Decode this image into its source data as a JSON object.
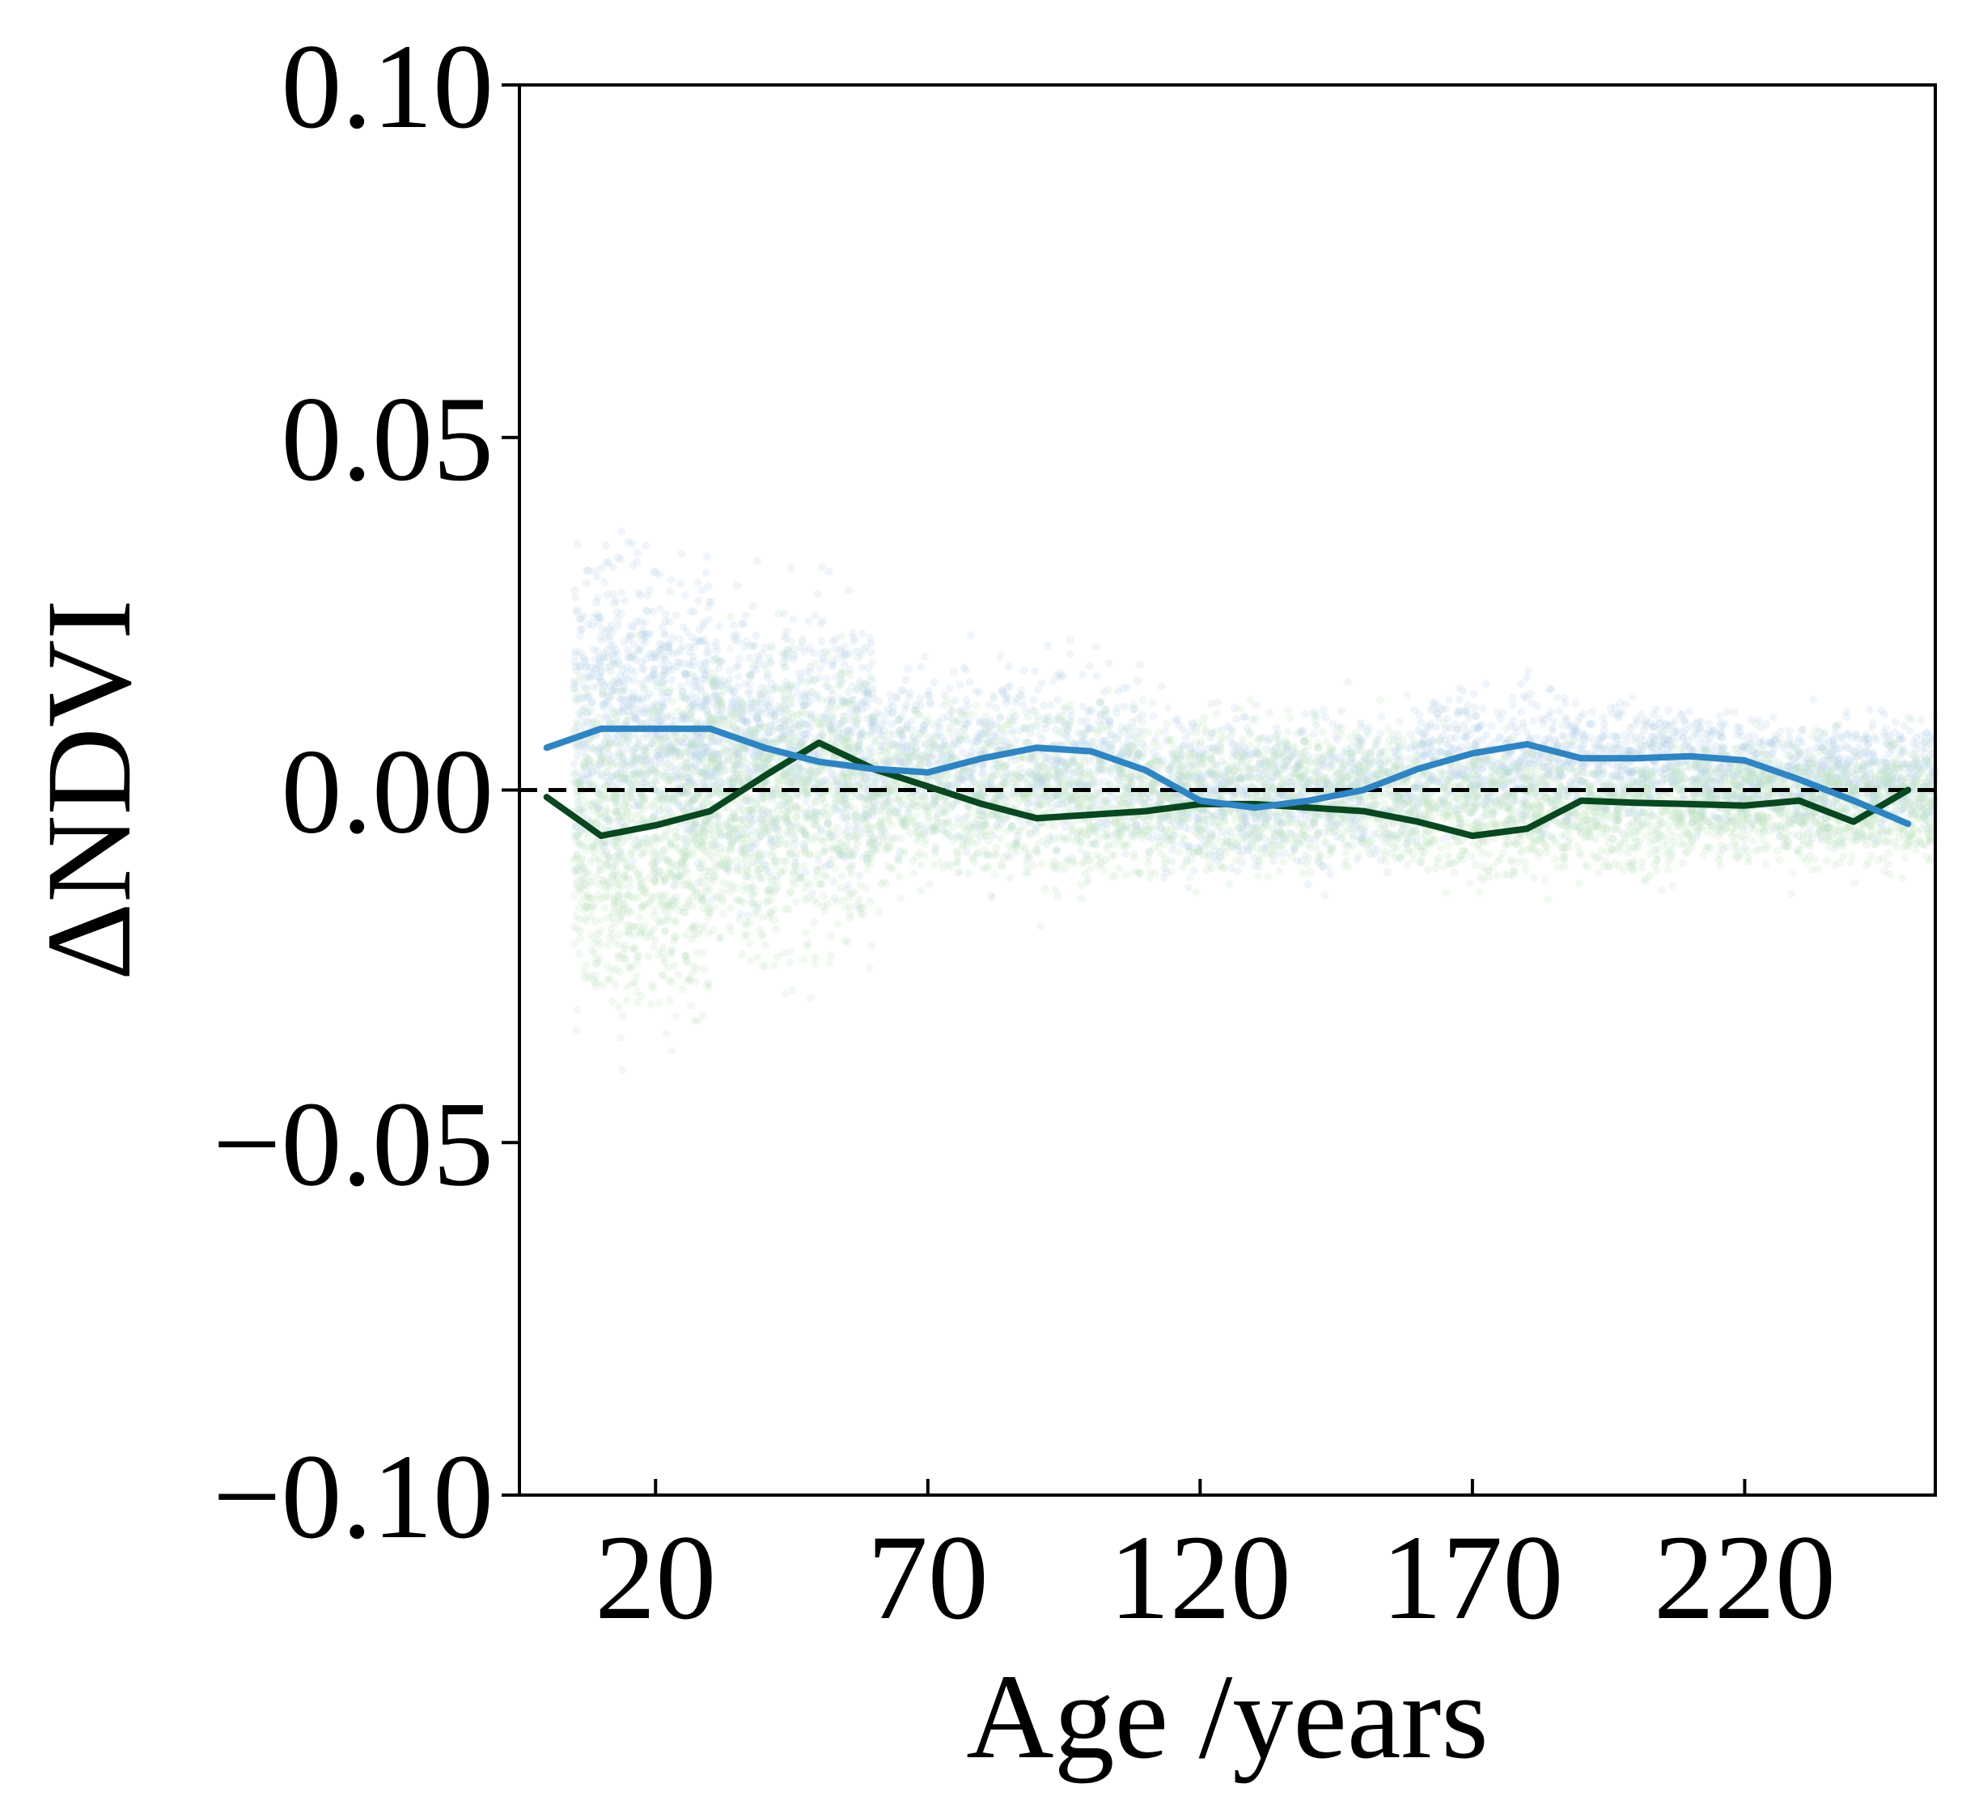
{
  "chart_data": {
    "type": "line",
    "title": "",
    "xlabel": "Age /years",
    "ylabel": "ΔNDVI",
    "xlim": [
      -5,
      255
    ],
    "ylim": [
      -0.1,
      0.1
    ],
    "x_ticks": [
      20,
      70,
      120,
      170,
      220
    ],
    "x_tick_labels": [
      "20",
      "70",
      "120",
      "170",
      "220"
    ],
    "y_ticks": [
      -0.1,
      -0.05,
      0.0,
      0.05,
      0.1
    ],
    "y_tick_labels": [
      "−0.10",
      "−0.05",
      "0.00",
      "0.05",
      "0.10"
    ],
    "reference_line": {
      "y": 0.0,
      "style": "dashed",
      "color": "#000000"
    },
    "grid": false,
    "legend": "none",
    "series": [
      {
        "color": "#08471f",
        "x": [
          0,
          10,
          20,
          30,
          40,
          50,
          60,
          70,
          80,
          90,
          100,
          110,
          120,
          130,
          140,
          150,
          160,
          170,
          180,
          190,
          200,
          210,
          220,
          230,
          240,
          250
        ],
        "y": [
          -0.001,
          -0.0065,
          -0.005,
          -0.003,
          0.002,
          0.0067,
          0.003,
          0.0005,
          -0.002,
          -0.004,
          -0.0035,
          -0.003,
          -0.002,
          -0.002,
          -0.0025,
          -0.003,
          -0.0045,
          -0.0065,
          -0.0055,
          -0.0015,
          -0.0018,
          -0.002,
          -0.0022,
          -0.0015,
          -0.0045,
          0.0
        ]
      },
      {
        "color": "#2f84c2",
        "x": [
          0,
          10,
          20,
          30,
          40,
          50,
          60,
          70,
          80,
          90,
          100,
          110,
          120,
          130,
          140,
          150,
          160,
          170,
          180,
          190,
          200,
          210,
          220,
          230,
          240,
          250
        ],
        "y": [
          0.006,
          0.0087,
          0.0087,
          0.0087,
          0.006,
          0.004,
          0.003,
          0.0025,
          0.0045,
          0.006,
          0.0055,
          0.0028,
          -0.0015,
          -0.0025,
          -0.0015,
          0.0,
          0.003,
          0.0052,
          0.0065,
          0.0045,
          0.0045,
          0.0048,
          0.0042,
          0.0015,
          -0.0015,
          -0.0048
        ]
      }
    ],
    "scatter_clouds": [
      {
        "color": "#b7d3e8",
        "bins": [
          {
            "x": [
              5,
              30
            ],
            "mean": 0.01,
            "spread": 0.02
          },
          {
            "x": [
              30,
              60
            ],
            "mean": 0.006,
            "spread": 0.018
          },
          {
            "x": [
              60,
              110
            ],
            "mean": 0.004,
            "spread": 0.012
          },
          {
            "x": [
              110,
              160
            ],
            "mean": 0.0,
            "spread": 0.01
          },
          {
            "x": [
              160,
              210
            ],
            "mean": 0.004,
            "spread": 0.009
          },
          {
            "x": [
              210,
              255
            ],
            "mean": 0.002,
            "spread": 0.008
          }
        ]
      },
      {
        "color": "#bfe2bf",
        "bins": [
          {
            "x": [
              5,
              30
            ],
            "mean": -0.008,
            "spread": 0.022
          },
          {
            "x": [
              30,
              60
            ],
            "mean": -0.002,
            "spread": 0.02
          },
          {
            "x": [
              60,
              110
            ],
            "mean": -0.001,
            "spread": 0.012
          },
          {
            "x": [
              110,
              160
            ],
            "mean": -0.001,
            "spread": 0.01
          },
          {
            "x": [
              160,
              210
            ],
            "mean": -0.003,
            "spread": 0.009
          },
          {
            "x": [
              210,
              255
            ],
            "mean": -0.002,
            "spread": 0.008
          }
        ]
      }
    ]
  }
}
